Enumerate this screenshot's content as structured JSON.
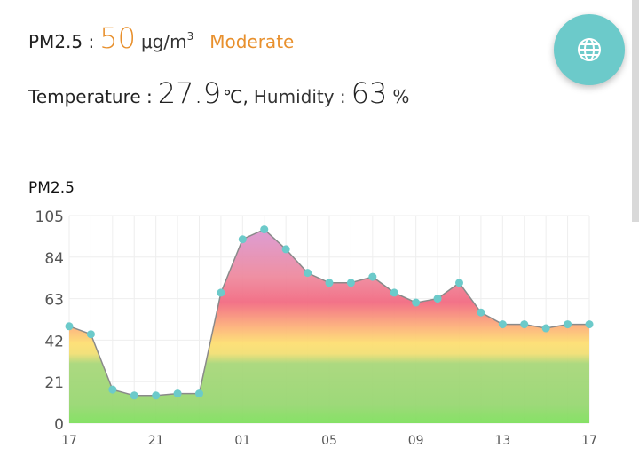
{
  "readings": {
    "pm_label": "PM2.5 :",
    "pm_value": "50",
    "pm_unit": "μg/m",
    "pm_unit_sup": "3",
    "pm_status": "Moderate",
    "temp_label": "Temperature :",
    "temp_value": "27.9",
    "temp_unit": "℃,",
    "humidity_label": "Humidity :",
    "humidity_value": "63",
    "humidity_unit": "%"
  },
  "fab": {
    "icon": "globe-icon"
  },
  "colors": {
    "accent": "#e8902d",
    "fab": "#6ccaca",
    "point": "#6ccaca",
    "line": "#8a8a8a"
  },
  "chart_data": {
    "type": "area",
    "title": "PM2.5",
    "xlabel": "",
    "ylabel": "",
    "ylim": [
      0,
      105
    ],
    "yticks": [
      "0",
      "21",
      "42",
      "63",
      "84",
      "105"
    ],
    "xticks": [
      "17",
      "21",
      "01",
      "05",
      "09",
      "13",
      "17"
    ],
    "grid": true,
    "series": [
      {
        "values": [
          49,
          45,
          17,
          14,
          14,
          15,
          15,
          66,
          93,
          98,
          88,
          76,
          71,
          71,
          74,
          66,
          61,
          63,
          71,
          56,
          50,
          50,
          48,
          50,
          50
        ]
      }
    ]
  }
}
